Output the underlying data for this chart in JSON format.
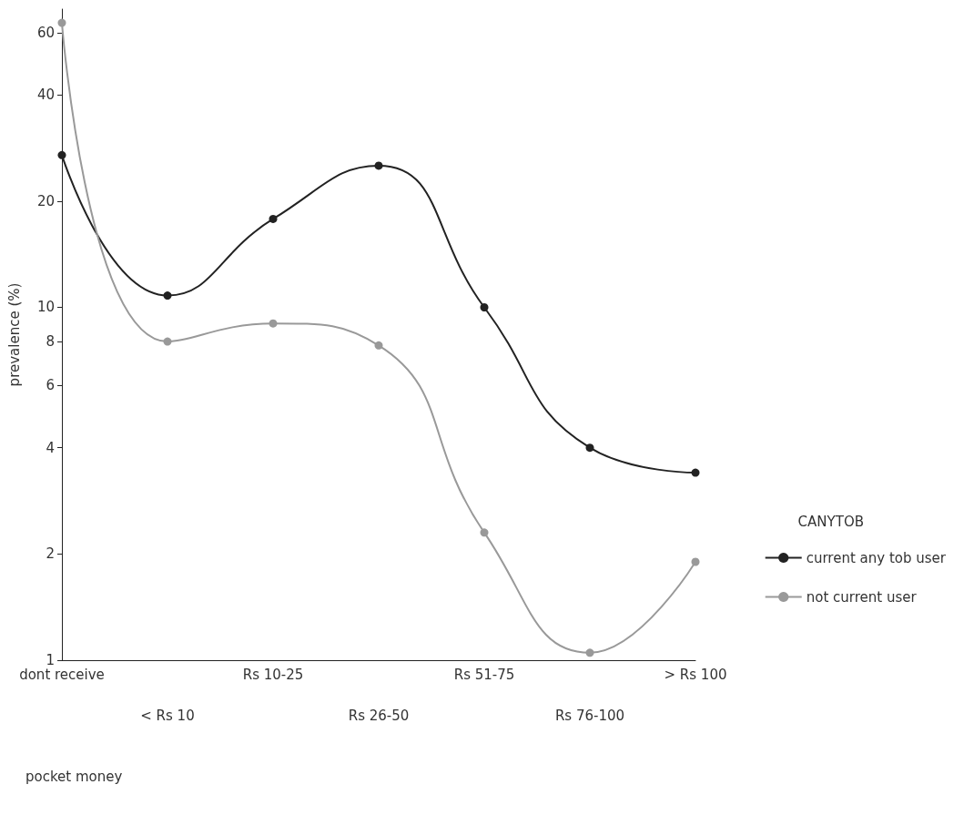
{
  "chart_data": {
    "type": "line",
    "xlabel": "pocket money",
    "ylabel": "prevalence (%)",
    "legend_title": "CANYTOB",
    "categories": [
      "dont receive",
      "< Rs 10",
      "Rs 10-25",
      "Rs 26-50",
      "Rs 51-75",
      "Rs 76-100",
      "> Rs 100"
    ],
    "series": [
      {
        "name": "current any tob user",
        "color": "#222222",
        "values": [
          27,
          10.8,
          17.8,
          25.2,
          10,
          4,
          3.4
        ]
      },
      {
        "name": "not current user",
        "color": "#999999",
        "values": [
          64,
          8,
          9,
          7.8,
          2.3,
          1.05,
          1.9
        ]
      }
    ],
    "log": "y",
    "ylim": [
      1,
      70
    ],
    "yticks": [
      1,
      2,
      4,
      6,
      8,
      10,
      20,
      40,
      60
    ],
    "grid": false,
    "legend": "right",
    "marker": "circle",
    "line_style": "solid"
  }
}
